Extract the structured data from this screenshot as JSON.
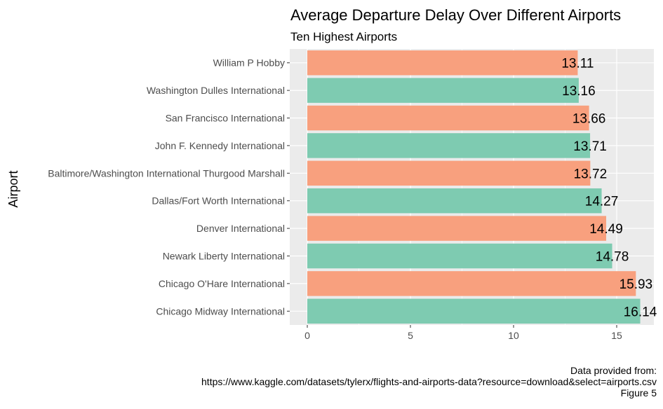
{
  "chart_data": {
    "type": "bar",
    "orientation": "horizontal",
    "title": "Average Departure Delay Over Different Airports",
    "subtitle": "Ten Highest Airports",
    "xlabel": "",
    "ylabel": "Airport",
    "xlim": [
      0,
      16.95
    ],
    "x_ticks": [
      0,
      5,
      10,
      15
    ],
    "grid": true,
    "categories": [
      "William P Hobby",
      "Washington Dulles International",
      "San Francisco International",
      "John F. Kennedy International",
      "Baltimore/Washington International Thurgood Marshall",
      "Dallas/Fort Worth International",
      "Denver International",
      "Newark Liberty International",
      "Chicago O'Hare International",
      "Chicago Midway International"
    ],
    "values": [
      13.11,
      13.16,
      13.66,
      13.71,
      13.72,
      14.27,
      14.49,
      14.78,
      15.93,
      16.14
    ],
    "data_labels": [
      "13.11",
      "13.16",
      "13.66",
      "13.71",
      "13.72",
      "14.27",
      "14.49",
      "14.78",
      "15.93",
      "16.14"
    ],
    "bar_colors": [
      "#f8a07e",
      "#7ecbb1"
    ],
    "panel_background": "#ebebeb",
    "gridline_color": "#ffffff"
  },
  "caption": {
    "lines": [
      "Data provided from:",
      "https://www.kaggle.com/datasets/tylerx/flights-and-airports-data?resource=download&select=airports.csv",
      "Figure 5"
    ]
  }
}
